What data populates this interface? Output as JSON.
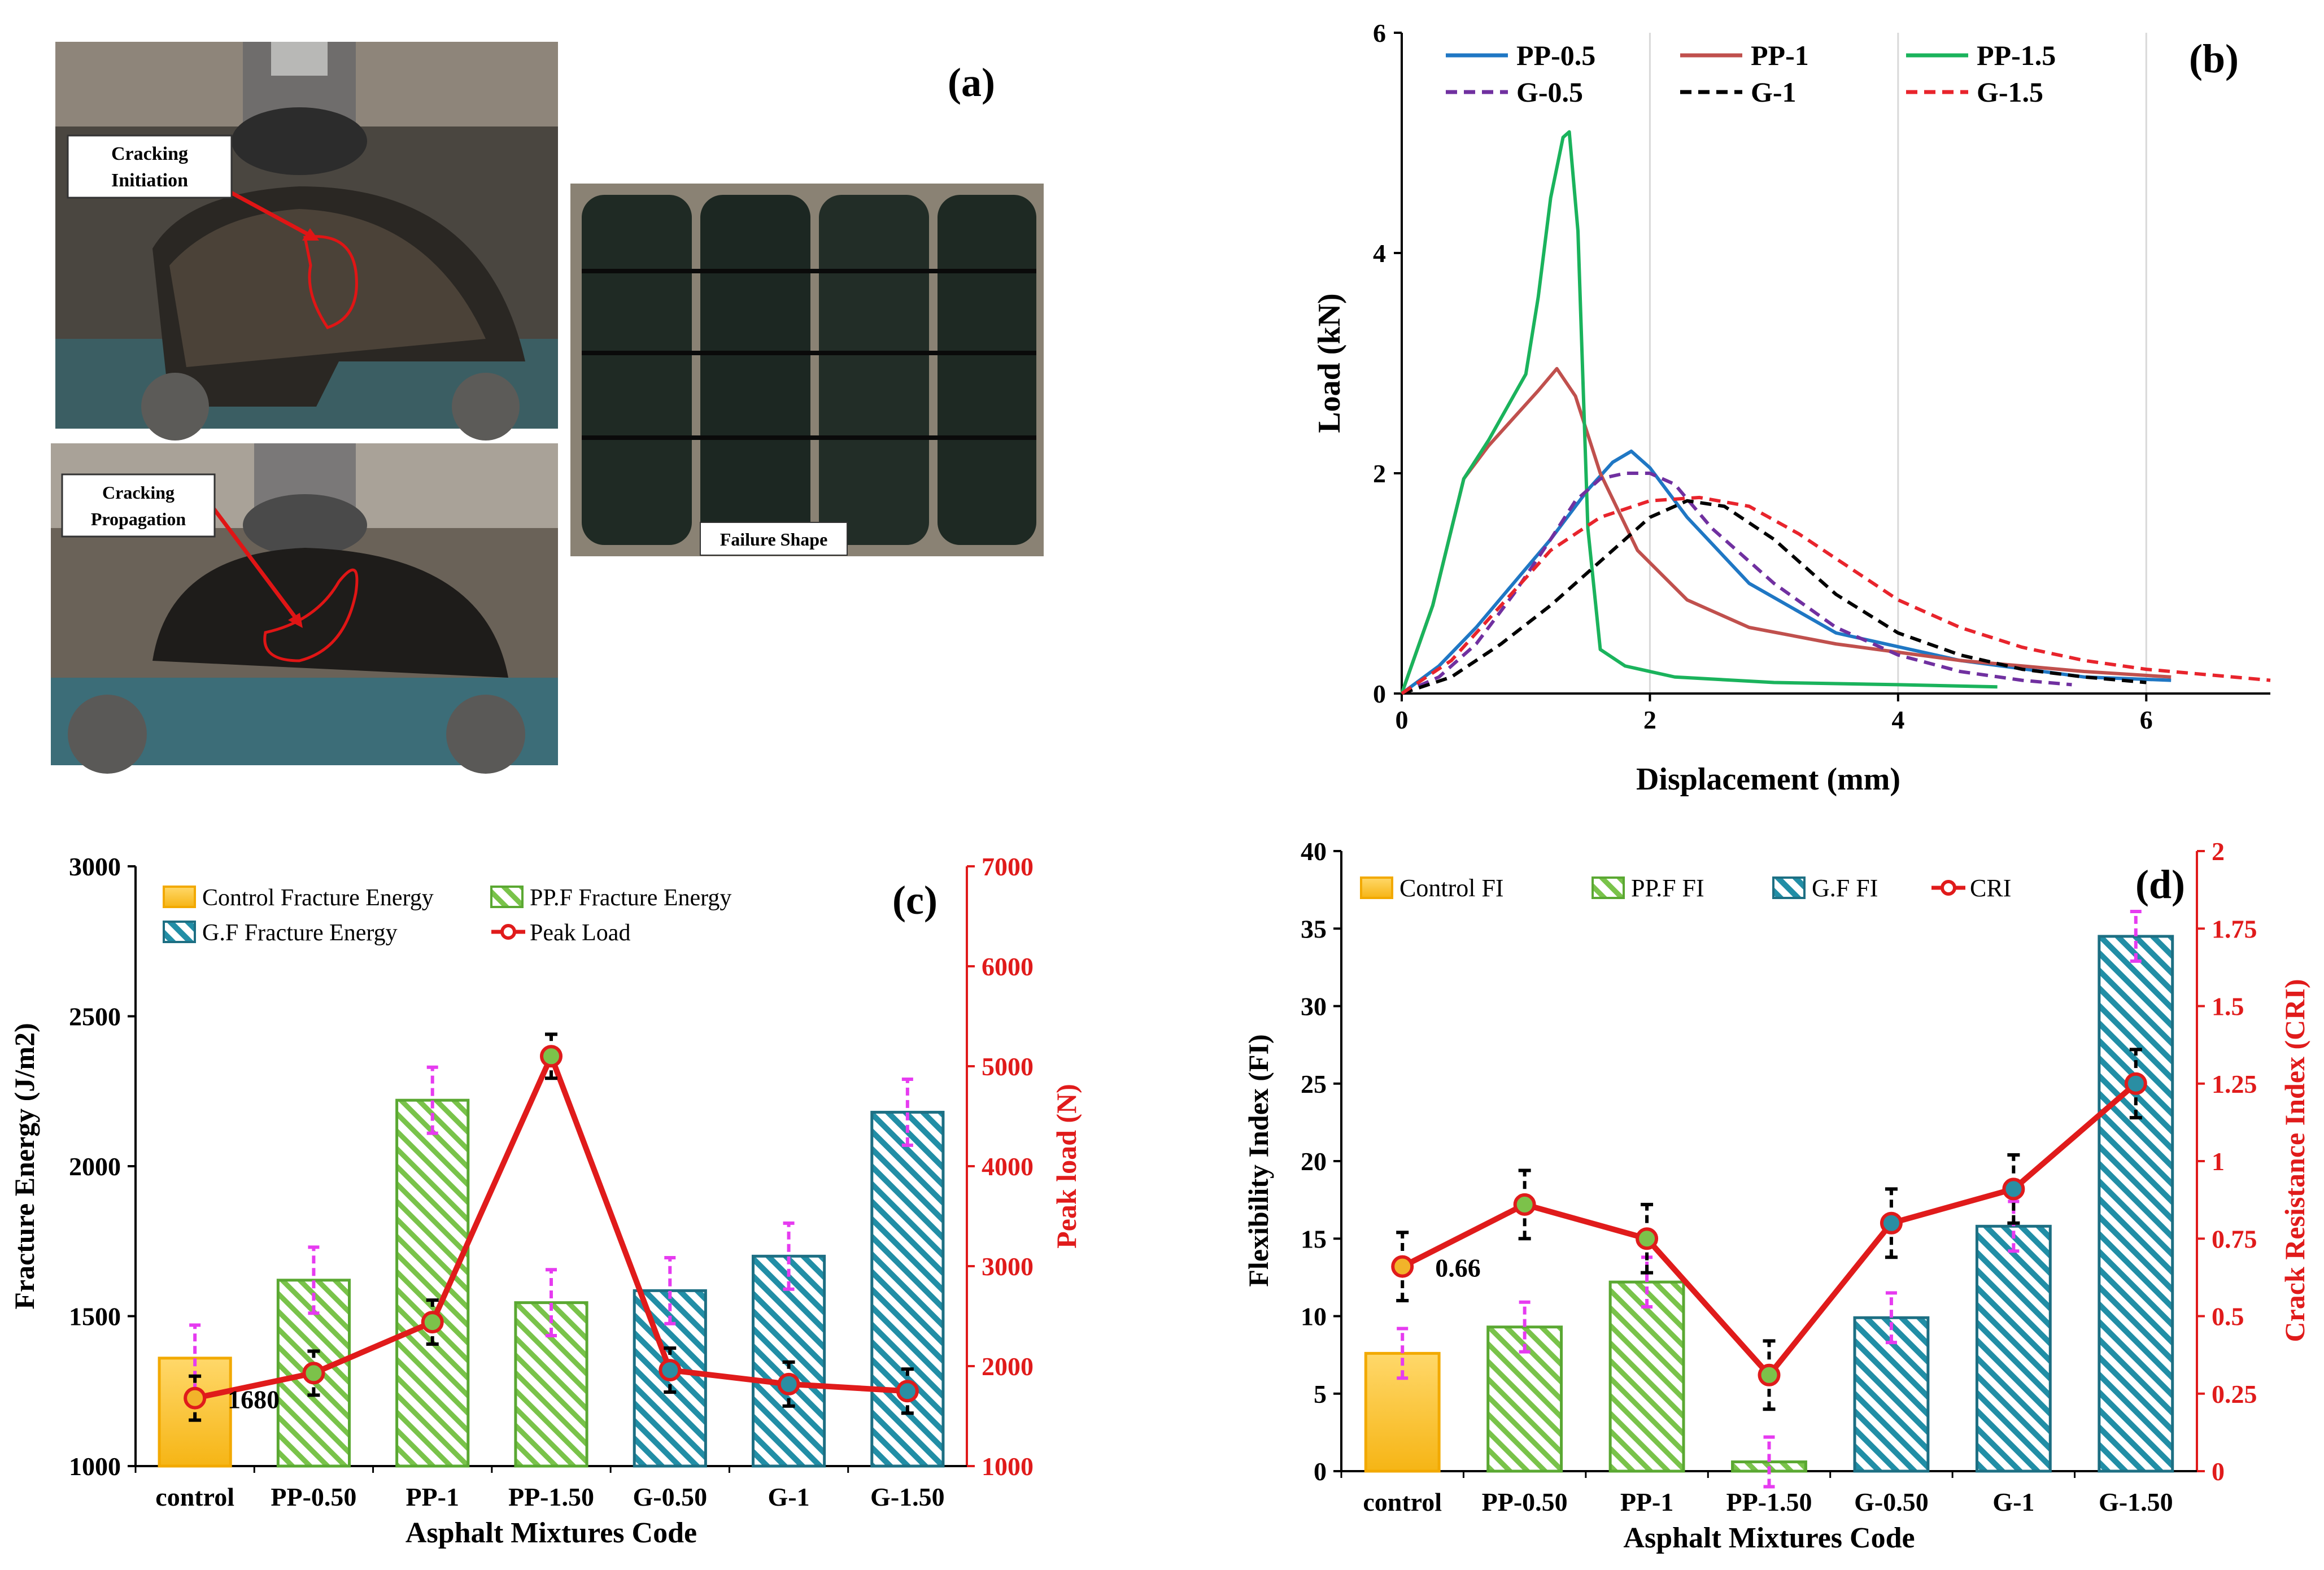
{
  "panel_a": {
    "letter": "(a)",
    "callout_initiation_line1": "Cracking",
    "callout_initiation_line2": "Initiation",
    "callout_propagation_line1": "Cracking",
    "callout_propagation_line2": "Propagation",
    "failure_label": "Failure Shape"
  },
  "chart_data": [
    {
      "id": "b",
      "type": "line",
      "letter": "(b)",
      "xlabel": "Displacement (mm)",
      "ylabel": "Load (kN)",
      "xlim": [
        0,
        7
      ],
      "ylim": [
        0,
        6
      ],
      "xticks": [
        0,
        2,
        4,
        6
      ],
      "yticks": [
        0,
        2,
        4,
        6
      ],
      "grid": "vertical",
      "legend": "top",
      "series": [
        {
          "name": "PP-0.5",
          "color": "#1f77c4",
          "dash": false,
          "x": [
            0,
            0.3,
            0.6,
            0.9,
            1.2,
            1.5,
            1.7,
            1.85,
            2.0,
            2.3,
            2.8,
            3.5,
            4.5,
            5.5,
            6.2
          ],
          "y": [
            0,
            0.25,
            0.6,
            1.0,
            1.4,
            1.85,
            2.1,
            2.2,
            2.05,
            1.6,
            1.0,
            0.55,
            0.3,
            0.15,
            0.12
          ]
        },
        {
          "name": "PP-1",
          "color": "#c0504d",
          "dash": false,
          "x": [
            0,
            0.25,
            0.5,
            0.7,
            0.9,
            1.1,
            1.25,
            1.4,
            1.6,
            1.9,
            2.3,
            2.8,
            3.5,
            4.5,
            5.5,
            6.2
          ],
          "y": [
            0,
            0.8,
            1.95,
            2.25,
            2.5,
            2.75,
            2.95,
            2.7,
            2.0,
            1.3,
            0.85,
            0.6,
            0.45,
            0.3,
            0.2,
            0.15
          ]
        },
        {
          "name": "PP-1.5",
          "color": "#1ab35c",
          "dash": false,
          "x": [
            0,
            0.25,
            0.5,
            0.7,
            1.0,
            1.1,
            1.2,
            1.3,
            1.35,
            1.42,
            1.5,
            1.6,
            1.8,
            2.2,
            3.0,
            4.0,
            4.8
          ],
          "y": [
            0,
            0.8,
            1.95,
            2.3,
            2.9,
            3.6,
            4.5,
            5.05,
            5.1,
            4.2,
            1.5,
            0.4,
            0.25,
            0.15,
            0.1,
            0.08,
            0.06
          ]
        },
        {
          "name": "G-0.5",
          "color": "#7030a0",
          "dash": true,
          "x": [
            0,
            0.3,
            0.6,
            0.9,
            1.2,
            1.4,
            1.6,
            1.8,
            2.0,
            2.2,
            2.5,
            3.0,
            3.5,
            4.0,
            4.5,
            5.0,
            5.4
          ],
          "y": [
            0,
            0.15,
            0.45,
            0.9,
            1.4,
            1.75,
            1.95,
            2.0,
            2.0,
            1.9,
            1.5,
            1.0,
            0.6,
            0.35,
            0.2,
            0.12,
            0.08
          ]
        },
        {
          "name": "G-1",
          "color": "#000000",
          "dash": true,
          "x": [
            0,
            0.4,
            0.8,
            1.2,
            1.6,
            2.0,
            2.3,
            2.6,
            3.0,
            3.5,
            4.0,
            4.5,
            5.0,
            5.5,
            6.0
          ],
          "y": [
            0,
            0.15,
            0.45,
            0.8,
            1.2,
            1.6,
            1.75,
            1.7,
            1.4,
            0.9,
            0.55,
            0.35,
            0.22,
            0.15,
            0.1
          ]
        },
        {
          "name": "G-1.5",
          "color": "#e8242c",
          "dash": true,
          "x": [
            0,
            0.4,
            0.8,
            1.2,
            1.6,
            2.0,
            2.4,
            2.8,
            3.2,
            3.6,
            4.0,
            4.5,
            5.0,
            5.5,
            6.0,
            6.5,
            7.0
          ],
          "y": [
            0,
            0.3,
            0.8,
            1.3,
            1.6,
            1.75,
            1.78,
            1.7,
            1.45,
            1.15,
            0.85,
            0.6,
            0.42,
            0.3,
            0.22,
            0.17,
            0.12
          ]
        }
      ]
    },
    {
      "id": "c",
      "type": "bar",
      "letter": "(c)",
      "xlabel": "Asphalt Mixtures Code",
      "ylabel": "Fracture Energy (J/m2)",
      "y2label": "Peak load (N)",
      "categories": [
        "control",
        "PP-0.50",
        "PP-1",
        "PP-1.50",
        "G-0.50",
        "G-1",
        "G-1.50"
      ],
      "ylim": [
        1000,
        3000
      ],
      "yticks": [
        1000,
        1500,
        2000,
        2500,
        3000
      ],
      "y2lim": [
        1000,
        7000
      ],
      "y2ticks": [
        1000,
        2000,
        3000,
        4000,
        5000,
        6000,
        7000
      ],
      "legend": "top-left",
      "bar_series": [
        {
          "name": "Control Fracture Energy",
          "color": "#f6c12e",
          "stroke": "#f2a900",
          "pattern": "solid",
          "indices": [
            0
          ],
          "values": [
            1360
          ],
          "err": [
            110
          ]
        },
        {
          "name": "PP.F Fracture Energy",
          "color": "#79c34a",
          "stroke": "#5aa832",
          "pattern": "hatch",
          "indices": [
            1,
            2,
            3
          ],
          "values": [
            1620,
            2220,
            1545
          ],
          "err": [
            110,
            110,
            110
          ]
        },
        {
          "name": "G.F Fracture Energy",
          "color": "#218ea6",
          "stroke": "#1d6f83",
          "pattern": "hatch",
          "indices": [
            4,
            5,
            6
          ],
          "values": [
            1585,
            1700,
            2180
          ],
          "err": [
            110,
            110,
            110
          ]
        }
      ],
      "line_series": {
        "name": "Peak Load",
        "color": "#e01b1b",
        "values": [
          1680,
          1930,
          2440,
          5100,
          1960,
          1820,
          1750
        ],
        "err": [
          220,
          220,
          220,
          220,
          220,
          220,
          220
        ]
      },
      "annotation": "1680"
    },
    {
      "id": "d",
      "type": "bar",
      "letter": "(d)",
      "xlabel": "Asphalt Mixtures Code",
      "ylabel": "Flexibility Index (FI)",
      "y2label": "Crack Resistance Index (CRI)",
      "categories": [
        "control",
        "PP-0.50",
        "PP-1",
        "PP-1.50",
        "G-0.50",
        "G-1",
        "G-1.50"
      ],
      "ylim": [
        0,
        40
      ],
      "yticks": [
        0,
        5,
        10,
        15,
        20,
        25,
        30,
        35,
        40
      ],
      "y2lim": [
        0,
        2
      ],
      "y2ticks": [
        "0",
        "0.25",
        "0.5",
        "0.75",
        "1",
        "1.25",
        "1.5",
        "1.75",
        "2"
      ],
      "legend": "top",
      "bar_series": [
        {
          "name": "Control FI",
          "color": "#f6c12e",
          "stroke": "#f2a900",
          "pattern": "solid",
          "indices": [
            0
          ],
          "values": [
            7.6
          ],
          "err": [
            1.6
          ]
        },
        {
          "name": "PP.F FI",
          "color": "#79c34a",
          "stroke": "#5aa832",
          "pattern": "hatch",
          "indices": [
            1,
            2,
            3
          ],
          "values": [
            9.3,
            12.2,
            0.6
          ],
          "err": [
            1.6,
            1.6,
            1.6
          ]
        },
        {
          "name": "G.F FI",
          "color": "#218ea6",
          "stroke": "#1d6f83",
          "pattern": "hatch",
          "indices": [
            4,
            5,
            6
          ],
          "values": [
            9.9,
            15.8,
            34.5
          ],
          "err": [
            1.6,
            1.6,
            1.6
          ]
        }
      ],
      "line_series": {
        "name": "CRI",
        "color": "#e01b1b",
        "values": [
          0.66,
          0.86,
          0.75,
          0.31,
          0.8,
          0.91,
          1.25
        ],
        "err": [
          0.11,
          0.11,
          0.11,
          0.11,
          0.11,
          0.11,
          0.11
        ]
      },
      "annotation": "0.66"
    }
  ]
}
